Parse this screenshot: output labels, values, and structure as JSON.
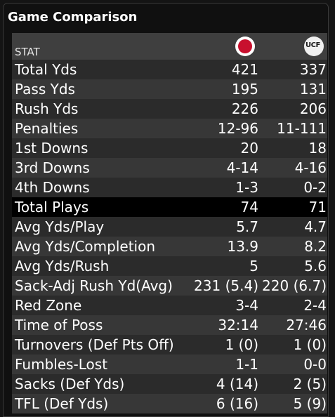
{
  "title": "Game Comparison",
  "header": {
    "stat_label": "STAT",
    "team_a_icon": "louisville-cardinal-logo",
    "team_b_icon": "ucf-logo"
  },
  "colors": {
    "row_odd": "#2b2b2b",
    "row_even": "#373737",
    "header_bg": "#3f3f3f",
    "highlight_bg": "#000000",
    "louisville_red": "#c8102e"
  },
  "rows": [
    {
      "stat": "Total Yds",
      "a": "421",
      "b": "337"
    },
    {
      "stat": "Pass Yds",
      "a": "195",
      "b": "131"
    },
    {
      "stat": "Rush Yds",
      "a": "226",
      "b": "206"
    },
    {
      "stat": "Penalties",
      "a": "12-96",
      "b": "11-111"
    },
    {
      "stat": "1st Downs",
      "a": "20",
      "b": "18"
    },
    {
      "stat": "3rd Downs",
      "a": "4-14",
      "b": "4-16"
    },
    {
      "stat": "4th Downs",
      "a": "1-3",
      "b": "0-2"
    },
    {
      "stat": "Total Plays",
      "a": "74",
      "b": "71"
    },
    {
      "stat": "Avg Yds/Play",
      "a": "5.7",
      "b": "4.7"
    },
    {
      "stat": "Avg Yds/Completion",
      "a": "13.9",
      "b": "8.2"
    },
    {
      "stat": "Avg Yds/Rush",
      "a": "5",
      "b": "5.6"
    },
    {
      "stat": "Sack-Adj Rush Yd(Avg)",
      "a": "231 (5.4)",
      "b": "220 (6.7)"
    },
    {
      "stat": "Red Zone",
      "a": "3-4",
      "b": "2-4"
    },
    {
      "stat": "Time of Poss",
      "a": "32:14",
      "b": "27:46"
    },
    {
      "stat": "Turnovers (Def Pts Off)",
      "a": "1 (0)",
      "b": "1 (0)"
    },
    {
      "stat": "Fumbles-Lost",
      "a": "1-1",
      "b": "0-0"
    },
    {
      "stat": "Sacks (Def Yds)",
      "a": "4 (14)",
      "b": "2 (5)"
    },
    {
      "stat": "TFL (Def Yds)",
      "a": "6 (16)",
      "b": "5 (9)"
    }
  ]
}
